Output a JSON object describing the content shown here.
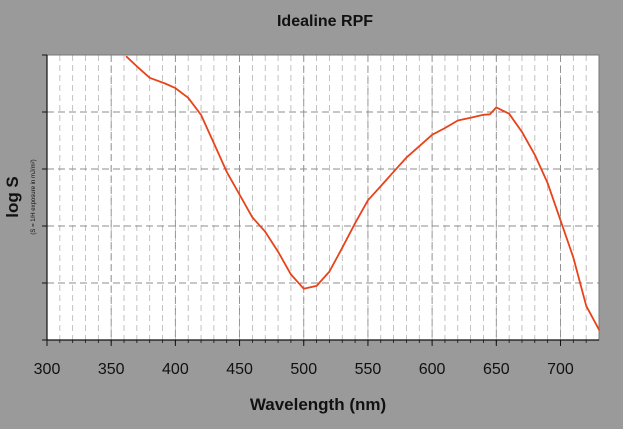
{
  "chart_data": {
    "type": "line",
    "title": "Idealine RPF",
    "xlabel": "Wavelength (nm)",
    "ylabel": "log S",
    "ylabel_sub": "(S = 1/H exposure in mJ/m²)",
    "xlim": [
      300,
      730
    ],
    "ylim": [
      0,
      5
    ],
    "x_ticks": [
      300,
      350,
      400,
      450,
      500,
      550,
      600,
      650,
      700
    ],
    "y_gridlines": [
      1,
      2,
      3,
      4
    ],
    "x_minor_grid": [
      310,
      320,
      330,
      340,
      350,
      360,
      370,
      380,
      390,
      400,
      410,
      420,
      430,
      440,
      450,
      460,
      470,
      480,
      490,
      500,
      510,
      520,
      530,
      540,
      550,
      560,
      570,
      580,
      590,
      600,
      610,
      620,
      630,
      640,
      650,
      660,
      670,
      680,
      690,
      700,
      710,
      720
    ],
    "grid": true,
    "series": [
      {
        "color": "#e8431a",
        "x": [
          362,
          370,
          380,
          392,
          400,
          410,
          420,
          430,
          440,
          450,
          460,
          470,
          480,
          490,
          500,
          510,
          520,
          530,
          540,
          550,
          560,
          570,
          580,
          590,
          600,
          610,
          620,
          630,
          640,
          645,
          650,
          660,
          670,
          680,
          690,
          700,
          710,
          720,
          730
        ],
        "y": [
          4.97,
          4.8,
          4.6,
          4.5,
          4.42,
          4.25,
          3.95,
          3.45,
          2.95,
          2.55,
          2.15,
          1.9,
          1.55,
          1.15,
          0.9,
          0.95,
          1.2,
          1.62,
          2.05,
          2.45,
          2.7,
          2.95,
          3.2,
          3.4,
          3.6,
          3.72,
          3.85,
          3.9,
          3.95,
          3.96,
          4.08,
          3.97,
          3.65,
          3.25,
          2.75,
          2.1,
          1.45,
          0.6,
          0.18
        ]
      }
    ]
  }
}
